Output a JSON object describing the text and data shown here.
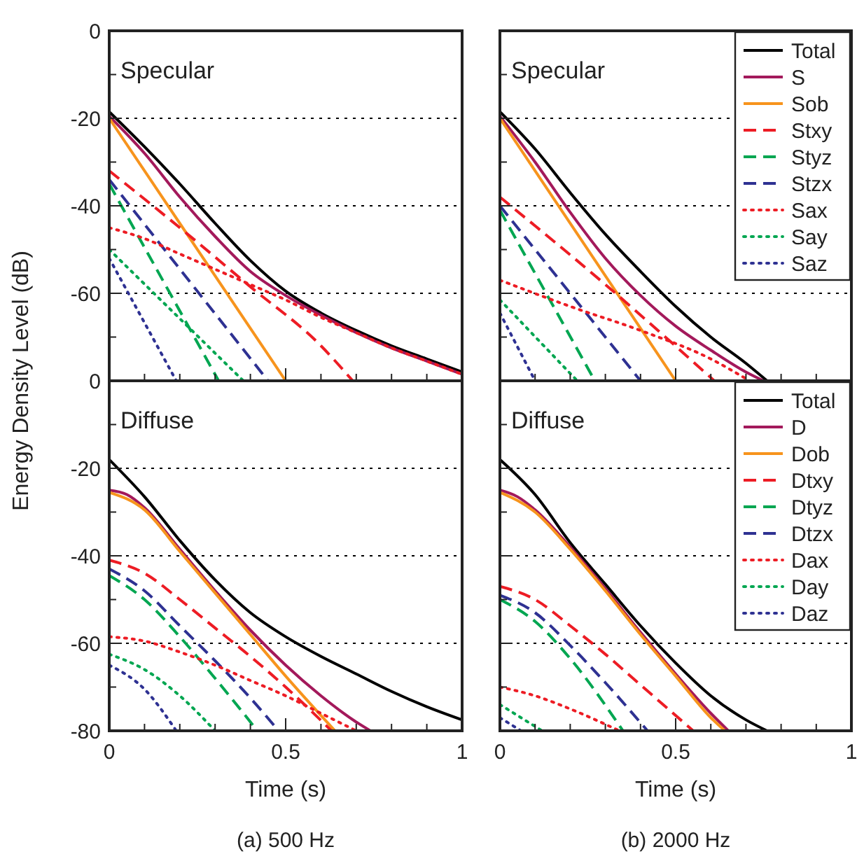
{
  "chart_data": [
    {
      "type": "line",
      "ylabel": "Energy Density Level (dB)",
      "annotations": [
        "Specular"
      ],
      "xlim": [
        0,
        1
      ],
      "ylim": [
        -80,
        0
      ],
      "xticks": [
        0,
        {
          "value": 0.1,
          "label": null
        },
        {
          "value": 0.2,
          "label": null
        },
        {
          "value": 0.3,
          "label": null
        },
        {
          "value": 0.4,
          "label": null
        },
        0.5,
        {
          "value": 0.6,
          "label": null
        },
        {
          "value": 0.7,
          "label": null
        },
        {
          "value": 0.8,
          "label": null
        },
        {
          "value": 0.9,
          "label": null
        },
        1
      ],
      "yticks": [
        0,
        {
          "value": -10,
          "label": null
        },
        -20,
        {
          "value": -30,
          "label": null
        },
        -40,
        {
          "value": -50,
          "label": null
        },
        -60,
        {
          "value": -70,
          "label": null
        },
        {
          "value": -80,
          "label": null
        }
      ],
      "tick_labels": "y",
      "grid": "y",
      "legend": false,
      "series": [
        {
          "color": "#000000",
          "line_style": "solid",
          "x": [
            0,
            0.1,
            0.2,
            0.3,
            0.4,
            0.5,
            0.6,
            0.7,
            0.8,
            0.9,
            1
          ],
          "values": [
            -18.5,
            -26.5,
            -35,
            -44,
            -52.5,
            -59.5,
            -64.5,
            -68.5,
            -72,
            -75,
            -78
          ]
        },
        {
          "color": "#a3195b",
          "line_style": "solid",
          "x": [
            0,
            0.1,
            0.2,
            0.3,
            0.4,
            0.5,
            0.6,
            0.7,
            0.8,
            0.9,
            1
          ],
          "values": [
            -19.5,
            -28,
            -38,
            -47,
            -55,
            -60.5,
            -65,
            -69,
            -72.5,
            -75.5,
            -78.5
          ]
        },
        {
          "color": "#f7941d",
          "line_style": "solid",
          "x": [
            0,
            0.5
          ],
          "values": [
            -20,
            -80
          ]
        },
        {
          "color": "#ed1c24",
          "line_style": "dashed",
          "x": [
            0,
            0.2,
            0.4,
            0.6,
            0.69
          ],
          "values": [
            -32,
            -45,
            -58.5,
            -72,
            -80
          ]
        },
        {
          "color": "#00a651",
          "line_style": "dashed",
          "x": [
            0,
            0.31
          ],
          "values": [
            -35,
            -80
          ]
        },
        {
          "color": "#2e3192",
          "line_style": "dashed",
          "x": [
            0,
            0.45
          ],
          "values": [
            -34,
            -80
          ]
        },
        {
          "color": "#ed1c24",
          "line_style": "dotted",
          "x": [
            0,
            0.1,
            0.2,
            0.3,
            0.4,
            0.5,
            0.6,
            0.7,
            0.8,
            0.9,
            1
          ],
          "values": [
            -45,
            -47.5,
            -51,
            -54.5,
            -58,
            -61.5,
            -65.5,
            -69,
            -72.5,
            -75.5,
            -78.5
          ]
        },
        {
          "color": "#00a651",
          "line_style": "dotted",
          "x": [
            0,
            0.38
          ],
          "values": [
            -50,
            -80
          ]
        },
        {
          "color": "#2e3192",
          "line_style": "dotted",
          "x": [
            0,
            0.19
          ],
          "values": [
            -52,
            -80
          ]
        }
      ]
    },
    {
      "type": "line",
      "annotations": [
        "Specular"
      ],
      "xlim": [
        0,
        1
      ],
      "ylim": [
        -80,
        0
      ],
      "xticks": [
        0,
        {
          "value": 0.1,
          "label": null
        },
        {
          "value": 0.2,
          "label": null
        },
        {
          "value": 0.3,
          "label": null
        },
        {
          "value": 0.4,
          "label": null
        },
        0.5,
        {
          "value": 0.6,
          "label": null
        },
        {
          "value": 0.7,
          "label": null
        },
        {
          "value": 0.8,
          "label": null
        },
        {
          "value": 0.9,
          "label": null
        },
        1
      ],
      "yticks": [
        0,
        {
          "value": -10,
          "label": null
        },
        -20,
        {
          "value": -30,
          "label": null
        },
        -40,
        {
          "value": -50,
          "label": null
        },
        -60,
        {
          "value": -70,
          "label": null
        },
        {
          "value": -80,
          "label": null
        }
      ],
      "tick_labels": false,
      "grid": "y",
      "legend": "top right",
      "series": [
        {
          "name": "Total",
          "color": "#000000",
          "line_style": "solid",
          "x": [
            0,
            0.1,
            0.2,
            0.3,
            0.4,
            0.5,
            0.6,
            0.7,
            0.76
          ],
          "values": [
            -18.5,
            -27,
            -37,
            -46.5,
            -55,
            -63,
            -70,
            -76,
            -80
          ]
        },
        {
          "name": "S",
          "color": "#a3195b",
          "line_style": "solid",
          "x": [
            0,
            0.1,
            0.2,
            0.3,
            0.4,
            0.5,
            0.6,
            0.7,
            0.75
          ],
          "values": [
            -19.5,
            -30,
            -41.5,
            -52,
            -60.5,
            -67.5,
            -73,
            -78,
            -80
          ]
        },
        {
          "name": "Sob",
          "color": "#f7941d",
          "line_style": "solid",
          "x": [
            0,
            0.5
          ],
          "values": [
            -20,
            -80
          ]
        },
        {
          "name": "Stxy",
          "color": "#ed1c24",
          "line_style": "dashed",
          "x": [
            0,
            0.3,
            0.61
          ],
          "values": [
            -38,
            -58,
            -80
          ]
        },
        {
          "name": "Styz",
          "color": "#00a651",
          "line_style": "dashed",
          "x": [
            0,
            0.27
          ],
          "values": [
            -41,
            -80
          ]
        },
        {
          "name": "Stzx",
          "color": "#2e3192",
          "line_style": "dashed",
          "x": [
            0,
            0.4
          ],
          "values": [
            -40,
            -80
          ]
        },
        {
          "name": "Sax",
          "color": "#ed1c24",
          "line_style": "dotted",
          "x": [
            0,
            0.2,
            0.4,
            0.6,
            0.71
          ],
          "values": [
            -57,
            -63,
            -68.5,
            -75,
            -80
          ]
        },
        {
          "name": "Say",
          "color": "#00a651",
          "line_style": "dotted",
          "x": [
            0,
            0.22
          ],
          "values": [
            -61.5,
            -80
          ]
        },
        {
          "name": "Saz",
          "color": "#2e3192",
          "line_style": "dotted",
          "x": [
            0,
            0.1
          ],
          "values": [
            -64.5,
            -80
          ]
        }
      ]
    },
    {
      "type": "line",
      "xlabel": "Time (s)",
      "annotations": [
        "Diffuse",
        "(a) 500 Hz"
      ],
      "xlim": [
        0,
        1
      ],
      "ylim": [
        -80,
        0
      ],
      "xticks": [
        0,
        {
          "value": 0.1,
          "label": null
        },
        {
          "value": 0.2,
          "label": null
        },
        {
          "value": 0.3,
          "label": null
        },
        {
          "value": 0.4,
          "label": null
        },
        0.5,
        {
          "value": 0.6,
          "label": null
        },
        {
          "value": 0.7,
          "label": null
        },
        {
          "value": 0.8,
          "label": null
        },
        {
          "value": 0.9,
          "label": null
        },
        1
      ],
      "yticks": [
        0,
        {
          "value": -10,
          "label": null
        },
        -20,
        {
          "value": -30,
          "label": null
        },
        -40,
        {
          "value": -50,
          "label": null
        },
        -60,
        {
          "value": -70,
          "label": null
        },
        -80
      ],
      "grid": "y",
      "legend": false,
      "series": [
        {
          "color": "#000000",
          "line_style": "solid",
          "x": [
            0,
            0.1,
            0.2,
            0.3,
            0.4,
            0.5,
            0.6,
            0.7,
            0.8,
            0.9,
            1
          ],
          "values": [
            -18,
            -26.5,
            -36.5,
            -45.5,
            -53,
            -58.5,
            -63,
            -67,
            -71,
            -74.5,
            -77.5
          ]
        },
        {
          "color": "#a3195b",
          "line_style": "solid",
          "x": [
            0,
            0.05,
            0.1,
            0.2,
            0.3,
            0.4,
            0.5,
            0.6,
            0.7,
            0.74
          ],
          "values": [
            -25,
            -26,
            -29,
            -38.5,
            -48,
            -57,
            -65,
            -72,
            -78,
            -80
          ]
        },
        {
          "color": "#f7941d",
          "line_style": "solid",
          "x": [
            0,
            0.1,
            0.2,
            0.3,
            0.4,
            0.5,
            0.6,
            0.64
          ],
          "values": [
            -25.5,
            -29.5,
            -39,
            -48.5,
            -58,
            -67.5,
            -76.5,
            -80
          ]
        },
        {
          "color": "#ed1c24",
          "line_style": "dashed",
          "x": [
            0,
            0.1,
            0.2,
            0.3,
            0.4,
            0.5,
            0.63
          ],
          "values": [
            -41,
            -44,
            -50,
            -56.5,
            -63,
            -70,
            -80
          ]
        },
        {
          "color": "#00a651",
          "line_style": "dashed",
          "x": [
            0,
            0.1,
            0.2,
            0.3,
            0.42
          ],
          "values": [
            -44.5,
            -50,
            -58.5,
            -68,
            -80
          ]
        },
        {
          "color": "#2e3192",
          "line_style": "dashed",
          "x": [
            0,
            0.1,
            0.2,
            0.3,
            0.4,
            0.48
          ],
          "values": [
            -43,
            -48,
            -56,
            -64,
            -72.5,
            -80
          ]
        },
        {
          "color": "#ed1c24",
          "line_style": "dotted",
          "x": [
            0,
            0.1,
            0.2,
            0.3,
            0.4,
            0.5,
            0.6,
            0.7
          ],
          "values": [
            -58.5,
            -59.5,
            -62,
            -65,
            -68.5,
            -72,
            -76,
            -80
          ]
        },
        {
          "color": "#00a651",
          "line_style": "dotted",
          "x": [
            0,
            0.1,
            0.2,
            0.3
          ],
          "values": [
            -62.5,
            -66,
            -72,
            -80
          ]
        },
        {
          "color": "#2e3192",
          "line_style": "dotted",
          "x": [
            0,
            0.1,
            0.19
          ],
          "values": [
            -65,
            -70.5,
            -80
          ]
        }
      ]
    },
    {
      "type": "line",
      "xlabel": "Time (s)",
      "annotations": [
        "Diffuse",
        "(b) 2000 Hz"
      ],
      "xlim": [
        0,
        1
      ],
      "ylim": [
        -80,
        0
      ],
      "xticks": [
        0,
        {
          "value": 0.1,
          "label": null
        },
        {
          "value": 0.2,
          "label": null
        },
        {
          "value": 0.3,
          "label": null
        },
        {
          "value": 0.4,
          "label": null
        },
        0.5,
        {
          "value": 0.6,
          "label": null
        },
        {
          "value": 0.7,
          "label": null
        },
        {
          "value": 0.8,
          "label": null
        },
        {
          "value": 0.9,
          "label": null
        },
        1
      ],
      "yticks": [
        0,
        {
          "value": -10,
          "label": null
        },
        -20,
        {
          "value": -30,
          "label": null
        },
        -40,
        {
          "value": -50,
          "label": null
        },
        -60,
        {
          "value": -70,
          "label": null
        },
        -80
      ],
      "tick_labels": "x",
      "grid": "y",
      "legend": "top right",
      "series": [
        {
          "name": "Total",
          "color": "#000000",
          "line_style": "solid",
          "x": [
            0,
            0.1,
            0.2,
            0.3,
            0.4,
            0.5,
            0.6,
            0.7,
            0.76
          ],
          "values": [
            -18,
            -26,
            -37,
            -46.5,
            -56,
            -64.5,
            -72,
            -77.5,
            -80
          ]
        },
        {
          "name": "D",
          "color": "#a3195b",
          "line_style": "solid",
          "x": [
            0,
            0.05,
            0.1,
            0.2,
            0.3,
            0.4,
            0.5,
            0.6,
            0.65
          ],
          "values": [
            -25,
            -26.5,
            -29.5,
            -38,
            -47.5,
            -57.5,
            -67,
            -76,
            -80
          ]
        },
        {
          "name": "Dob",
          "color": "#f7941d",
          "line_style": "solid",
          "x": [
            0,
            0.1,
            0.2,
            0.3,
            0.4,
            0.5,
            0.6,
            0.64
          ],
          "values": [
            -25.5,
            -30,
            -38.5,
            -48,
            -58,
            -67.5,
            -77,
            -80
          ]
        },
        {
          "name": "Dtxy",
          "color": "#ed1c24",
          "line_style": "dashed",
          "x": [
            0,
            0.1,
            0.2,
            0.3,
            0.4,
            0.55
          ],
          "values": [
            -47,
            -50,
            -56,
            -62.5,
            -69.5,
            -80
          ]
        },
        {
          "name": "Dtyz",
          "color": "#00a651",
          "line_style": "dashed",
          "x": [
            0,
            0.1,
            0.2,
            0.35
          ],
          "values": [
            -50,
            -55,
            -63.5,
            -80
          ]
        },
        {
          "name": "Dtzx",
          "color": "#2e3192",
          "line_style": "dashed",
          "x": [
            0,
            0.1,
            0.2,
            0.3,
            0.42
          ],
          "values": [
            -49,
            -53,
            -60.5,
            -69,
            -80
          ]
        },
        {
          "name": "Dax",
          "color": "#ed1c24",
          "line_style": "dotted",
          "x": [
            0,
            0.1,
            0.2,
            0.34
          ],
          "values": [
            -70,
            -72,
            -75,
            -80
          ]
        },
        {
          "name": "Day",
          "color": "#00a651",
          "line_style": "dotted",
          "x": [
            0,
            0.12
          ],
          "values": [
            -74,
            -80
          ]
        },
        {
          "name": "Daz",
          "color": "#2e3192",
          "line_style": "dotted",
          "x": [
            0,
            0.06
          ],
          "values": [
            -77,
            -80
          ]
        }
      ]
    }
  ]
}
